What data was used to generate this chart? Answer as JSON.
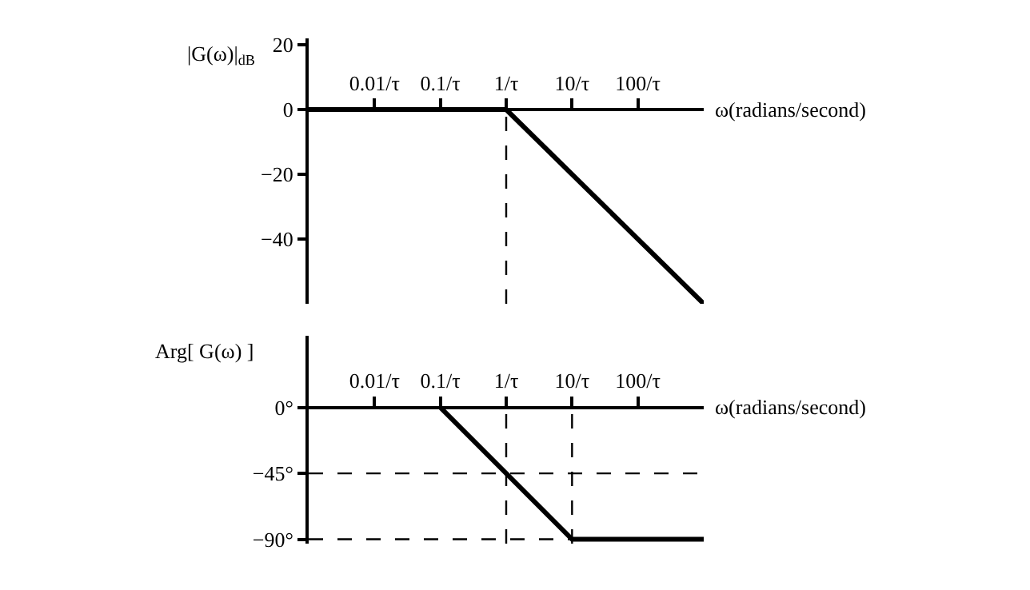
{
  "chart_data": [
    {
      "type": "line",
      "xlabel": "ω(radians/second)",
      "ylabel": "|G(ω)|$_{dB}$",
      "log": "x",
      "xlim": [
        0.001,
        1000
      ],
      "xticks": [
        {
          "value": 0.01,
          "label": "0.01/τ"
        },
        {
          "value": 0.1,
          "label": "0.1/τ"
        },
        {
          "value": 1,
          "label": "1/τ"
        },
        {
          "value": 10,
          "label": "10/τ"
        },
        {
          "value": 100,
          "label": "100/τ"
        }
      ],
      "ylim": [
        -60,
        22
      ],
      "yticks": [
        20,
        0,
        {
          "value": -20,
          "label": "−20"
        },
        {
          "value": -40,
          "label": "−40"
        }
      ],
      "series": [
        {
          "color": "#000000",
          "x": [
            0.001,
            1,
            1000
          ],
          "values": [
            0,
            0,
            -60
          ]
        }
      ],
      "ref_lines": [
        {
          "axis": "x",
          "value": 1,
          "line_style": "dashed",
          "color": "#000000"
        }
      ],
      "grid": false,
      "line_style": "solid",
      "marker": "none"
    },
    {
      "type": "line",
      "xlabel": "ω(radians/second)",
      "ylabel": "Arg[ G(ω) ]",
      "log": "x",
      "xlim": [
        0.001,
        1000
      ],
      "xticks": [
        {
          "value": 0.01,
          "label": "0.01/τ"
        },
        {
          "value": 0.1,
          "label": "0.1/τ"
        },
        {
          "value": 1,
          "label": "1/τ"
        },
        {
          "value": 10,
          "label": "10/τ"
        },
        {
          "value": 100,
          "label": "100/τ"
        }
      ],
      "ylim": [
        -93,
        49
      ],
      "yticks": [
        {
          "value": 0,
          "label": "0°"
        },
        {
          "value": -45,
          "label": "−45°"
        },
        {
          "value": -90,
          "label": "−90°"
        }
      ],
      "series": [
        {
          "color": "#000000",
          "x": [
            0.1,
            10,
            1000
          ],
          "values": [
            0,
            -90,
            -90
          ]
        }
      ],
      "ref_lines": [
        {
          "axis": "x",
          "value": 1,
          "line_style": "dashed",
          "color": "#000000"
        },
        {
          "axis": "x",
          "value": 10,
          "line_style": "dashed",
          "color": "#000000"
        },
        {
          "axis": "y",
          "value": -45,
          "line_style": "dashed",
          "color": "#000000"
        },
        {
          "axis": "y",
          "value": -90,
          "line_style": "dashed",
          "color": "#000000"
        }
      ],
      "grid": false,
      "line_style": "solid",
      "marker": "none"
    }
  ]
}
